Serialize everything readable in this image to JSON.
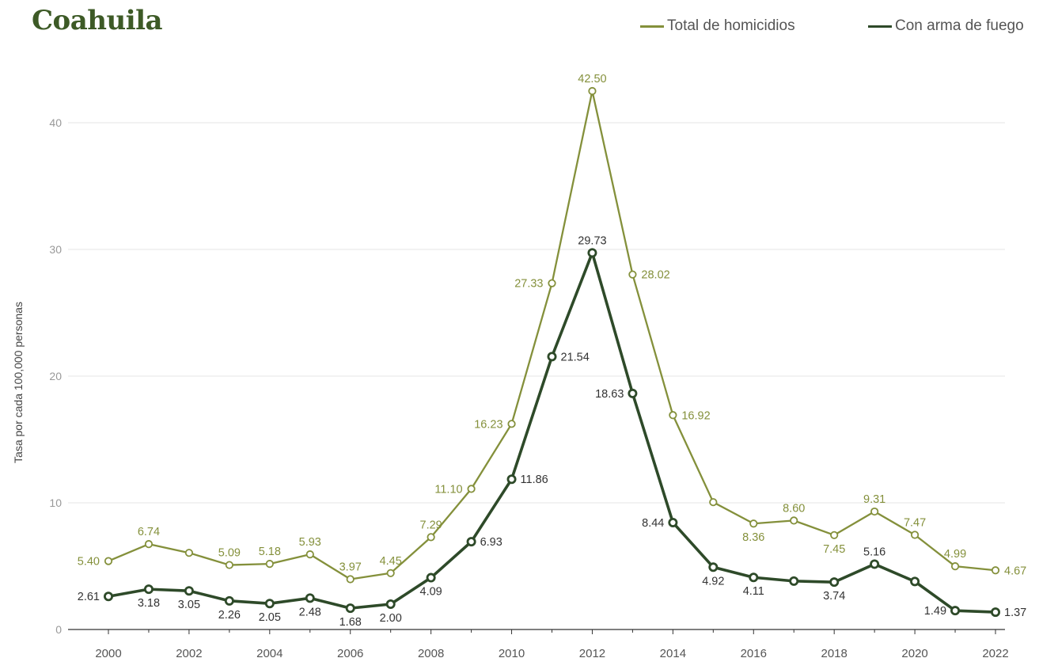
{
  "title": "Coahuila",
  "colors": {
    "total": "#84903b",
    "arma": "#2e4a29",
    "grid": "#e6e6e6",
    "axis": "#333333",
    "tick": "#999999"
  },
  "legend": [
    {
      "name": "Total de homicidios",
      "color": "#84903b"
    },
    {
      "name": "Con arma de fuego",
      "color": "#2e4a29"
    }
  ],
  "chart_data": {
    "type": "line",
    "title": "Coahuila",
    "xlabel": "",
    "ylabel": "Tasa por cada 100,000 personas",
    "x": [
      2000,
      2001,
      2002,
      2003,
      2004,
      2005,
      2006,
      2007,
      2008,
      2009,
      2010,
      2011,
      2012,
      2013,
      2014,
      2015,
      2016,
      2017,
      2018,
      2019,
      2020,
      2021,
      2022
    ],
    "x_ticks": [
      2000,
      2002,
      2004,
      2006,
      2008,
      2010,
      2012,
      2014,
      2016,
      2018,
      2020,
      2022
    ],
    "ylim": [
      0,
      45
    ],
    "y_ticks": [
      0,
      10,
      20,
      30,
      40
    ],
    "grid": true,
    "legend_position": "top-right",
    "series": [
      {
        "name": "Total de homicidios",
        "values": [
          5.4,
          6.74,
          6.05,
          5.09,
          5.18,
          5.93,
          3.97,
          4.45,
          7.29,
          11.1,
          16.23,
          27.33,
          42.5,
          28.02,
          16.92,
          10.05,
          8.36,
          8.6,
          7.45,
          9.31,
          7.47,
          4.99,
          4.67
        ],
        "labels": [
          "5.40",
          "6.74",
          "",
          "5.09",
          "5.18",
          "5.93",
          "3.97",
          "4.45",
          "7.29",
          "11.10",
          "16.23",
          "27.33",
          "42.50",
          "28.02",
          "16.92",
          "",
          "8.36",
          "8.60",
          "7.45",
          "9.31",
          "7.47",
          "4.99",
          "4.67"
        ]
      },
      {
        "name": "Con arma de fuego",
        "values": [
          2.61,
          3.18,
          3.05,
          2.26,
          2.05,
          2.48,
          1.68,
          2.0,
          4.09,
          6.93,
          11.86,
          21.54,
          29.73,
          18.63,
          8.44,
          4.92,
          4.11,
          3.82,
          3.74,
          5.16,
          3.79,
          1.49,
          1.37
        ],
        "labels": [
          "2.61",
          "3.18",
          "3.05",
          "2.26",
          "2.05",
          "2.48",
          "1.68",
          "2.00",
          "4.09",
          "6.93",
          "11.86",
          "21.54",
          "29.73",
          "18.63",
          "8.44",
          "4.92",
          "4.11",
          "",
          "3.74",
          "5.16",
          "",
          "1.49",
          "1.37"
        ]
      }
    ]
  }
}
